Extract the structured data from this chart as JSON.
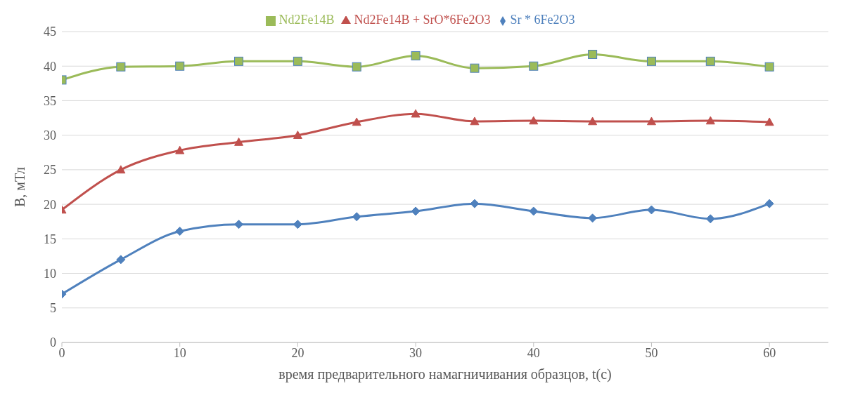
{
  "chart_data": {
    "type": "line",
    "xlabel": "время предварительного намагничивания образцов, t(c)",
    "ylabel": "B, мТл",
    "x": [
      0,
      5,
      10,
      15,
      20,
      25,
      30,
      35,
      40,
      45,
      50,
      55,
      60
    ],
    "xlim": [
      0,
      65
    ],
    "xticks": [
      0,
      10,
      20,
      30,
      40,
      50,
      60
    ],
    "ylim": [
      0,
      45
    ],
    "yticks": [
      0,
      5,
      10,
      15,
      20,
      25,
      30,
      35,
      40,
      45
    ],
    "grid": "y",
    "legend": "top",
    "series": [
      {
        "name": "Sr * 6Fe2O3",
        "color": "#4f81bd",
        "marker": "diamond",
        "values": [
          7,
          12,
          16.1,
          17.1,
          17.1,
          18.2,
          19,
          20.1,
          19,
          18,
          19.2,
          17.9,
          20.1
        ]
      },
      {
        "name": "Nd2Fe14B + SrO*6Fe2O3",
        "color": "#c0504d",
        "marker": "triangle",
        "values": [
          19.2,
          25,
          27.8,
          29,
          30,
          31.9,
          33.1,
          32,
          32.1,
          32,
          32,
          32.1,
          31.9
        ]
      },
      {
        "name": "Nd2Fe14B",
        "color": "#9bbb59",
        "marker": "square",
        "values": [
          38,
          39.9,
          40,
          40.7,
          40.7,
          39.9,
          41.5,
          39.7,
          40,
          41.7,
          40.7,
          40.7,
          39.9
        ]
      }
    ]
  }
}
